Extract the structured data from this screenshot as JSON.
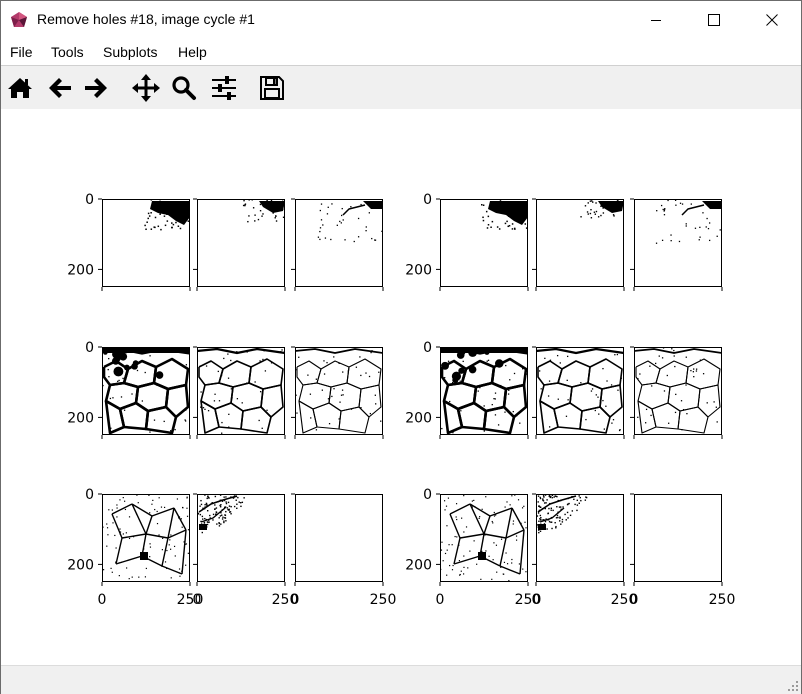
{
  "window": {
    "title": "Remove holes #18, image cycle #1",
    "icon": "matplotlib-cube-icon"
  },
  "controls": [
    "minimize-icon",
    "maximize-icon",
    "close-icon"
  ],
  "menu": {
    "items": [
      {
        "key": "file",
        "label": "File"
      },
      {
        "key": "tools",
        "label": "Tools"
      },
      {
        "key": "subplots",
        "label": "Subplots"
      },
      {
        "key": "help",
        "label": "Help"
      }
    ]
  },
  "toolbar": {
    "tools": [
      "home-icon",
      "back-icon",
      "forward-icon",
      "pan-icon",
      "zoom-icon",
      "configure-subplots-icon",
      "save-icon"
    ]
  },
  "figure": {
    "axes": {
      "y_tick_labels": [
        "0",
        "200"
      ],
      "x_tick_labels": [
        "0",
        "250"
      ],
      "ylim": [
        0,
        250
      ],
      "xlim": [
        0,
        250
      ]
    },
    "panels": [
      {
        "id": "L-r1-c1",
        "content": "blob-top-right"
      },
      {
        "id": "L-r1-c2",
        "content": "sparse-top-right"
      },
      {
        "id": "L-r1-c3",
        "content": "sparse-top-right-fine"
      },
      {
        "id": "L-r2-c1",
        "content": "cell-membranes-thick"
      },
      {
        "id": "L-r2-c2",
        "content": "cell-membranes"
      },
      {
        "id": "L-r2-c3",
        "content": "cell-membranes-thin"
      },
      {
        "id": "L-r3-c1",
        "content": "network-dense"
      },
      {
        "id": "L-r3-c2",
        "content": "network-corner"
      },
      {
        "id": "L-r3-c3",
        "content": "empty"
      },
      {
        "id": "R-r1-c1",
        "content": "blob-top-right"
      },
      {
        "id": "R-r1-c2",
        "content": "sparse-top-right"
      },
      {
        "id": "R-r1-c3",
        "content": "sparse-top-right-fine"
      },
      {
        "id": "R-r2-c1",
        "content": "cell-membranes-thick"
      },
      {
        "id": "R-r2-c2",
        "content": "cell-membranes"
      },
      {
        "id": "R-r2-c3",
        "content": "cell-membranes-thin"
      },
      {
        "id": "R-r3-c1",
        "content": "network-dense"
      },
      {
        "id": "R-r3-c2",
        "content": "network-corner"
      },
      {
        "id": "R-r3-c3",
        "content": "empty"
      }
    ]
  },
  "status": {
    "text": ""
  }
}
